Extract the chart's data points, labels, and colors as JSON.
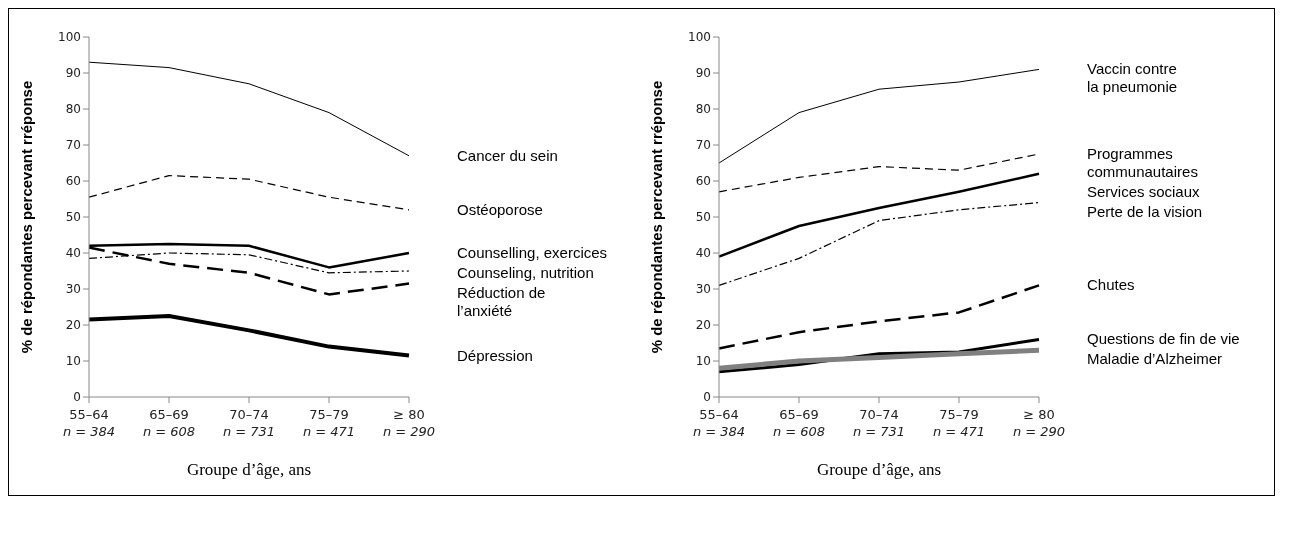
{
  "chart_data": [
    {
      "type": "line",
      "ylabel": "% de répondantes percevant  rréponse",
      "xlabel": "Groupe d’âge, ans",
      "categories": [
        "55–64\nn = 384",
        "65–69\nn = 608",
        "70–74\nn = 731",
        "75–79\nn = 471",
        "≥ 80\nn = 290"
      ],
      "ylim": [
        0,
        100
      ],
      "yticks": [
        0,
        10,
        20,
        30,
        40,
        50,
        60,
        70,
        80,
        90,
        100
      ],
      "grid": false,
      "marker": "none",
      "series": [
        {
          "name": "Cancer du sein",
          "color": "#000000",
          "line_style": "solid",
          "values": [
            93,
            91.5,
            87,
            79,
            67
          ]
        },
        {
          "name": "Ostéoporose",
          "color": "#000000",
          "line_style": "dashed",
          "values": [
            55.5,
            61.5,
            60.5,
            55.5,
            52
          ]
        },
        {
          "name": "Counselling, exercices",
          "color": "#000000",
          "line_style": "solid",
          "values": [
            42,
            42.5,
            42,
            36,
            40
          ]
        },
        {
          "name": "Counseling, nutrition",
          "color": "#000000",
          "line_style": "dashed",
          "values": [
            38.5,
            40,
            39.5,
            34.5,
            35
          ]
        },
        {
          "name": "Réduction de\nl’anxiété",
          "color": "#000000",
          "line_style": "dashed",
          "values": [
            41.5,
            37,
            34.5,
            28.5,
            31.5
          ]
        },
        {
          "name": "Dépression",
          "color": "#000000",
          "line_style": "solid",
          "values": [
            21.5,
            22.5,
            18.5,
            14,
            11.5
          ]
        }
      ]
    },
    {
      "type": "line",
      "ylabel": "% de répondantes percevant  rréponse",
      "xlabel": "Groupe d’âge, ans",
      "categories": [
        "55–64\nn = 384",
        "65–69\nn = 608",
        "70–74\nn = 731",
        "75–79\nn = 471",
        "≥ 80\nn = 290"
      ],
      "ylim": [
        0,
        100
      ],
      "yticks": [
        0,
        10,
        20,
        30,
        40,
        50,
        60,
        70,
        80,
        90,
        100
      ],
      "grid": false,
      "marker": "none",
      "series": [
        {
          "name": "Vaccin contre\nla pneumonie",
          "color": "#000000",
          "line_style": "solid",
          "values": [
            65,
            79,
            85.5,
            87.5,
            91
          ]
        },
        {
          "name": "Programmes\ncommunautaires",
          "color": "#000000",
          "line_style": "dashed",
          "values": [
            57,
            61,
            64,
            63,
            67.5
          ]
        },
        {
          "name": "Services sociaux",
          "color": "#000000",
          "line_style": "solid",
          "values": [
            39,
            47.5,
            52.5,
            57,
            62
          ]
        },
        {
          "name": "Perte de la vision",
          "color": "#000000",
          "line_style": "dashed",
          "values": [
            31,
            38.5,
            49,
            52,
            54
          ]
        },
        {
          "name": "Chutes",
          "color": "#000000",
          "line_style": "dashed",
          "values": [
            13.5,
            18,
            21,
            23.5,
            31
          ]
        },
        {
          "name": "Questions de fin de vie",
          "color": "#000000",
          "line_style": "solid",
          "values": [
            7,
            9,
            12,
            12.5,
            16
          ]
        },
        {
          "name": "Maladie d’Alzheimer",
          "color": "#808080",
          "line_style": "solid",
          "values": [
            8,
            10,
            11,
            12,
            13
          ]
        }
      ]
    }
  ]
}
